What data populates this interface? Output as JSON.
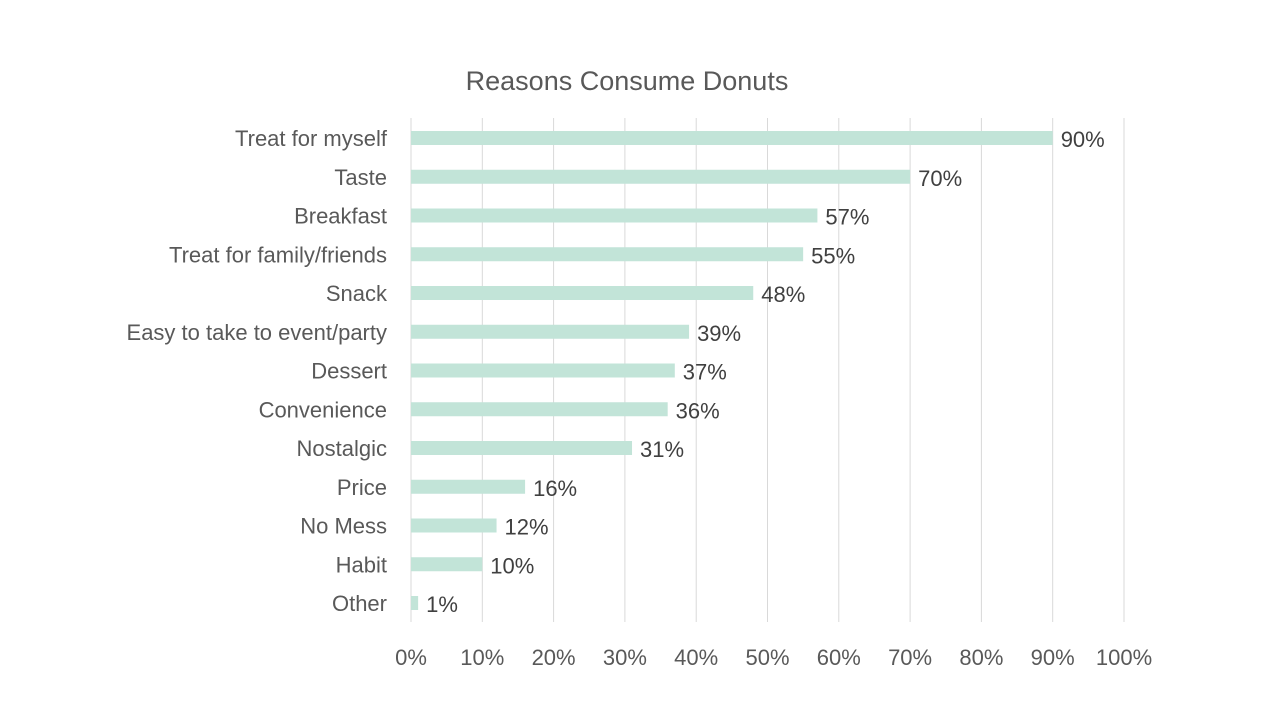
{
  "chart_data": {
    "type": "bar",
    "orientation": "horizontal",
    "title": "Reasons Consume Donuts",
    "xlabel": "",
    "ylabel": "",
    "categories": [
      "Treat for myself",
      "Taste",
      "Breakfast",
      "Treat for family/friends",
      "Snack",
      "Easy to take to event/party",
      "Dessert",
      "Convenience",
      "Nostalgic",
      "Price",
      "No Mess",
      "Habit",
      "Other"
    ],
    "values": [
      90,
      70,
      57,
      55,
      48,
      39,
      37,
      36,
      31,
      16,
      12,
      10,
      1
    ],
    "data_labels": [
      "90%",
      "70%",
      "57%",
      "55%",
      "48%",
      "39%",
      "37%",
      "36%",
      "31%",
      "16%",
      "12%",
      "10%",
      "1%"
    ],
    "xlim": [
      0,
      100
    ],
    "x_ticks": [
      "0%",
      "10%",
      "20%",
      "30%",
      "40%",
      "50%",
      "60%",
      "70%",
      "80%",
      "90%",
      "100%"
    ],
    "grid": true,
    "legend": "none",
    "bar_color": "#c2e4d8",
    "text_color": "#595959",
    "gridline_color": "#d9d9d9"
  }
}
